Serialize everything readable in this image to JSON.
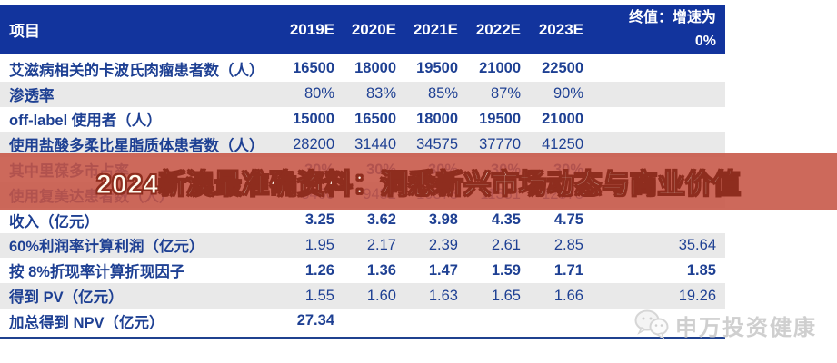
{
  "colors": {
    "header_bg": "#12349D",
    "header_text": "#FFFFFF",
    "row_text": "#1E4093",
    "row_alt_bg": "#E9E9E9",
    "table_bottom_border": "#1F418F",
    "banner_bg": "rgba(198,84,68,0.88)",
    "banner_text": "#FFFBEF",
    "banner_text_outline": "#8E2D1E",
    "watermark_text_color": "#CFCFCF"
  },
  "table": {
    "header": {
      "item_label": "项目",
      "year_labels": [
        "2019E",
        "2020E",
        "2021E",
        "2022E",
        "2023E"
      ],
      "terminal_label": "终值：增速为\n0%"
    },
    "rows": [
      {
        "label": "艾滋病相关的卡波氏肉瘤患者数（人）",
        "values": [
          "16500",
          "18000",
          "19500",
          "21000",
          "22500"
        ],
        "terminal": ""
      },
      {
        "label": "渗透率",
        "values": [
          "80%",
          "83%",
          "85%",
          "87%",
          "90%"
        ],
        "terminal": ""
      },
      {
        "label": "off-label 使用者（人）",
        "values": [
          "15000",
          "16500",
          "18000",
          "19500",
          "21000"
        ],
        "terminal": ""
      },
      {
        "label": "使用盐酸多柔比星脂质体患者数（人）",
        "values": [
          "28200",
          "31440",
          "34575",
          "37770",
          "41250"
        ],
        "terminal": ""
      },
      {
        "label": "其中里葆多市占率",
        "values": [
          "30%",
          "30%",
          "30%",
          "30%",
          "30%"
        ],
        "terminal": ""
      },
      {
        "label": "使用复美达患者数（人）",
        "values": [
          "8460",
          "9432",
          "10373",
          "11331",
          "12375"
        ],
        "terminal": ""
      },
      {
        "label": "收入（亿元）",
        "values": [
          "3.25",
          "3.62",
          "3.98",
          "4.35",
          "4.75"
        ],
        "terminal": ""
      },
      {
        "label": "60%利润率计算利润（亿元）",
        "values": [
          "1.95",
          "2.17",
          "2.39",
          "2.61",
          "2.85"
        ],
        "terminal": "35.64"
      },
      {
        "label": "按 8%折现率计算折现因子",
        "values": [
          "1.26",
          "1.36",
          "1.47",
          "1.59",
          "1.71"
        ],
        "terminal": "1.85"
      },
      {
        "label": "得到 PV（亿元）",
        "values": [
          "1.55",
          "1.60",
          "1.63",
          "1.65",
          "1.66"
        ],
        "terminal": "19.26"
      },
      {
        "label": "加总得到 NPV（亿元）",
        "values": [
          "27.34",
          "",
          "",
          "",
          ""
        ],
        "terminal": ""
      }
    ]
  },
  "banner": {
    "text": "2024新澳最准确资料：洞悉新兴市场动态与商业价值"
  },
  "watermark": {
    "icon": "wechat-icon",
    "text": "申万投资健康"
  }
}
